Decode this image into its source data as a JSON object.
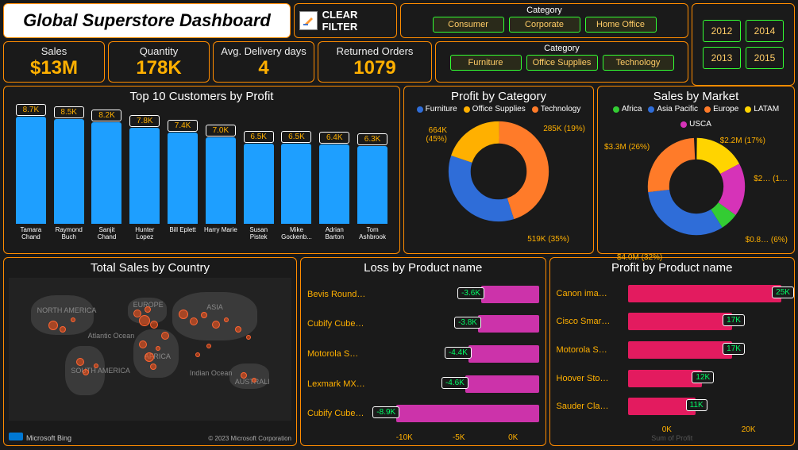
{
  "title": "Global Superstore Dashboard",
  "clear_filter_label": "CLEAR FILTER",
  "slicers": {
    "category1": {
      "title": "Category",
      "items": [
        "Consumer",
        "Corporate",
        "Home Office"
      ]
    },
    "category2": {
      "title": "Category",
      "items": [
        "Furniture",
        "Office Supplies",
        "Technology"
      ]
    }
  },
  "years": [
    "2012",
    "2014",
    "2013",
    "2015"
  ],
  "kpis": [
    {
      "label": "Sales",
      "value": "$13M"
    },
    {
      "label": "Quantity",
      "value": "178K"
    },
    {
      "label": "Avg. Delivery days",
      "value": "4"
    },
    {
      "label": "Returned Orders",
      "value": "1079"
    }
  ],
  "top_customers": {
    "title": "Top 10 Customers by Profit",
    "max": 9.0,
    "items": [
      {
        "name": "Tamara Chand",
        "val": 8.7,
        "label": "8.7K"
      },
      {
        "name": "Raymond Buch",
        "val": 8.5,
        "label": "8.5K"
      },
      {
        "name": "Sanjit Chand",
        "val": 8.2,
        "label": "8.2K"
      },
      {
        "name": "Hunter Lopez",
        "val": 7.8,
        "label": "7.8K"
      },
      {
        "name": "Bill Eplett",
        "val": 7.4,
        "label": "7.4K"
      },
      {
        "name": "Harry Marie",
        "val": 7.0,
        "label": "7.0K"
      },
      {
        "name": "Susan Pistek",
        "val": 6.5,
        "label": "6.5K"
      },
      {
        "name": "Mike Gockenb...",
        "val": 6.5,
        "label": "6.5K"
      },
      {
        "name": "Adrian Barton",
        "val": 6.4,
        "label": "6.4K"
      },
      {
        "name": "Tom Ashbrook",
        "val": 6.3,
        "label": "6.3K"
      }
    ],
    "bar_color": "#1e9fff",
    "label_border": "#ffffff",
    "label_text": "#ffb000"
  },
  "profit_category": {
    "title": "Profit by Category",
    "legend": [
      {
        "name": "Furniture",
        "color": "#2f6dd8"
      },
      {
        "name": "Office Supplies",
        "color": "#ffb000"
      },
      {
        "name": "Technology",
        "color": "#ff7b29"
      }
    ],
    "slices": [
      {
        "label": "285K (19%)",
        "pct": 19,
        "pos": "top-right"
      },
      {
        "label": "519K (35%)",
        "pct": 35,
        "pos": "bottom-right"
      },
      {
        "label": "664K (45%)",
        "pct": 45,
        "pos": "left"
      }
    ]
  },
  "sales_market": {
    "title": "Sales by Market",
    "legend": [
      {
        "name": "Africa",
        "color": "#33cc33"
      },
      {
        "name": "Asia Pacific",
        "color": "#2f6dd8"
      },
      {
        "name": "Europe",
        "color": "#ff7b29"
      },
      {
        "name": "LATAM",
        "color": "#ffd400"
      },
      {
        "name": "USCA",
        "color": "#d633b8"
      }
    ],
    "slices": [
      {
        "label": "$2.2M (17%)",
        "pos": "top-right"
      },
      {
        "label": "$2… (1…",
        "pos": "right"
      },
      {
        "label": "$0.8… (6%)",
        "pos": "bottom-right"
      },
      {
        "label": "$4.0M (32%)",
        "pos": "bottom-left"
      },
      {
        "label": "$3.3M (26%)",
        "pos": "top-left"
      }
    ]
  },
  "map": {
    "title": "Total Sales by Country",
    "credit_left": "Microsoft Bing",
    "credit_right": "© 2023 Microsoft Corporation",
    "continents": [
      "NORTH AMERICA",
      "Atlantic Ocean",
      "SOUTH AMERICA",
      "EUROPE",
      "AFRICA",
      "ASIA",
      "Indian Ocean",
      "AUSTRALI"
    ]
  },
  "loss_products": {
    "title": "Loss by Product name",
    "min": -10,
    "max": 0,
    "bar_color": "#cc33aa",
    "axis": [
      "-10K",
      "-5K",
      "0K"
    ],
    "items": [
      {
        "name": "Bevis Round…",
        "val": -3.6,
        "label": "-3.6K"
      },
      {
        "name": "Cubify Cube…",
        "val": -3.8,
        "label": "-3.8K"
      },
      {
        "name": "Motorola S…",
        "val": -4.4,
        "label": "-4.4K"
      },
      {
        "name": "Lexmark MX…",
        "val": -4.6,
        "label": "-4.6K"
      },
      {
        "name": "Cubify Cube…",
        "val": -8.9,
        "label": "-8.9K"
      }
    ]
  },
  "profit_products": {
    "title": "Profit by Product name",
    "min": 0,
    "max": 26,
    "bar_color": "#e31b5f",
    "axis": [
      "0K",
      "20K"
    ],
    "items": [
      {
        "name": "Canon ima…",
        "val": 25,
        "label": "25K"
      },
      {
        "name": "Cisco Smar…",
        "val": 17,
        "label": "17K"
      },
      {
        "name": "Motorola S…",
        "val": 17,
        "label": "17K"
      },
      {
        "name": "Hoover Sto…",
        "val": 12,
        "label": "12K"
      },
      {
        "name": "Sauder Cla…",
        "val": 11,
        "label": "11K"
      }
    ],
    "footer": "Sum of Profit"
  }
}
